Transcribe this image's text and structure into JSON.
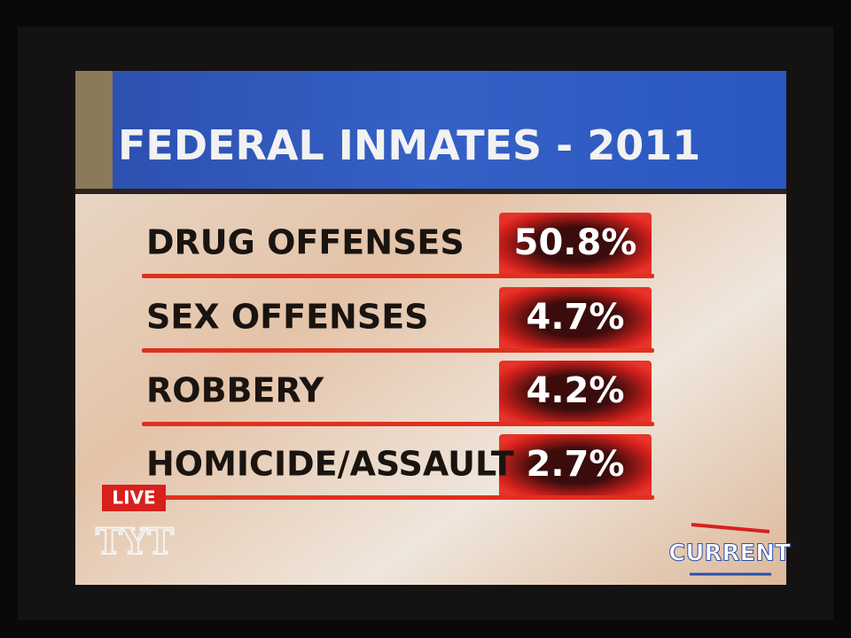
{
  "header": {
    "title": "FEDERAL INMATES - 2011"
  },
  "table": {
    "rows": [
      [
        "DRUG OFFENSES",
        "50.8%"
      ],
      [
        "SEX OFFENSES",
        "4.7%"
      ],
      [
        "ROBBERY",
        "4.2%"
      ],
      [
        "HOMICIDE/ASSAULT",
        "2.7%"
      ]
    ]
  },
  "overlay": {
    "live": "LIVE",
    "show_logo": "TYT",
    "network_logo": "CURRENT"
  }
}
